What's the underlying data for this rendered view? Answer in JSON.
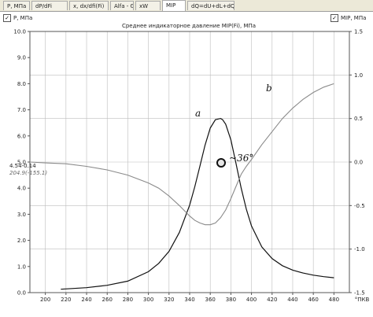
{
  "tabs": [
    {
      "label": "P, МПа",
      "active": false
    },
    {
      "label": "dP/dFi",
      "active": false
    },
    {
      "label": "x, dx/dfi(Fi)",
      "active": false
    },
    {
      "label": "Alfa - G",
      "active": false
    },
    {
      "label": "xW",
      "active": false
    },
    {
      "label": "MIP",
      "active": true
    },
    {
      "label": "dQ=dU+dL+dQw",
      "active": false
    }
  ],
  "left_toggle": {
    "label": "P, МПа",
    "checked": true
  },
  "right_toggle": {
    "label": "MIP, МПа",
    "checked": true
  },
  "readouts": {
    "left_value": "4.54-0.14",
    "left_sub": "204.9(-155.1)"
  },
  "annotations": {
    "curve_a": "a",
    "curve_b": "b",
    "angle": "~36°"
  },
  "colors": {
    "pressure": "#111111",
    "mip": "#8a8a8a",
    "grid": "#bdbdbd",
    "frame": "#555555"
  },
  "chart_data": {
    "type": "line",
    "title": "Среднее индикаторное давление MIP(Fi), МПа",
    "xlabel": "°ПКВ",
    "xlim": [
      185,
      495
    ],
    "ylim_left": [
      0,
      10
    ],
    "ylim_right": [
      -1.5,
      1.5
    ],
    "x_ticks": [
      200,
      220,
      240,
      260,
      280,
      300,
      320,
      340,
      360,
      380,
      400,
      420,
      440,
      460,
      480
    ],
    "y_ticks_left": [
      "0.0",
      "1.0",
      "2.0",
      "3.0",
      "4.0",
      "5.0",
      "6.0",
      "7.0",
      "8.0",
      "9.0",
      "10.0"
    ],
    "y_ticks_right": [
      "-1.5",
      "-1.0",
      "-0.5",
      "0.0",
      "0.5",
      "1.0",
      "1.5"
    ],
    "grid": true,
    "series": [
      {
        "name": "a",
        "axis": "left",
        "x": [
          215,
          240,
          260,
          280,
          300,
          310,
          320,
          330,
          340,
          345,
          350,
          355,
          360,
          365,
          370,
          372,
          375,
          380,
          385,
          390,
          395,
          400,
          410,
          420,
          430,
          440,
          450,
          460,
          470,
          480
        ],
        "y": [
          0.13,
          0.19,
          0.28,
          0.44,
          0.8,
          1.12,
          1.58,
          2.3,
          3.35,
          4.05,
          4.85,
          5.65,
          6.3,
          6.62,
          6.67,
          6.62,
          6.45,
          5.85,
          4.95,
          4.0,
          3.2,
          2.55,
          1.75,
          1.3,
          1.03,
          0.86,
          0.75,
          0.67,
          0.61,
          0.57
        ]
      },
      {
        "name": "b",
        "axis": "right",
        "x": [
          185,
          200,
          220,
          240,
          260,
          280,
          300,
          310,
          320,
          330,
          340,
          345,
          350,
          355,
          360,
          365,
          370,
          375,
          380,
          385,
          390,
          395,
          400,
          410,
          420,
          430,
          440,
          450,
          460,
          470,
          480
        ],
        "y": [
          0.0,
          -0.01,
          -0.02,
          -0.05,
          -0.09,
          -0.15,
          -0.24,
          -0.3,
          -0.39,
          -0.5,
          -0.62,
          -0.67,
          -0.7,
          -0.72,
          -0.72,
          -0.7,
          -0.64,
          -0.55,
          -0.42,
          -0.28,
          -0.14,
          -0.05,
          0.03,
          0.2,
          0.35,
          0.5,
          0.62,
          0.72,
          0.8,
          0.86,
          0.9
        ]
      }
    ]
  }
}
